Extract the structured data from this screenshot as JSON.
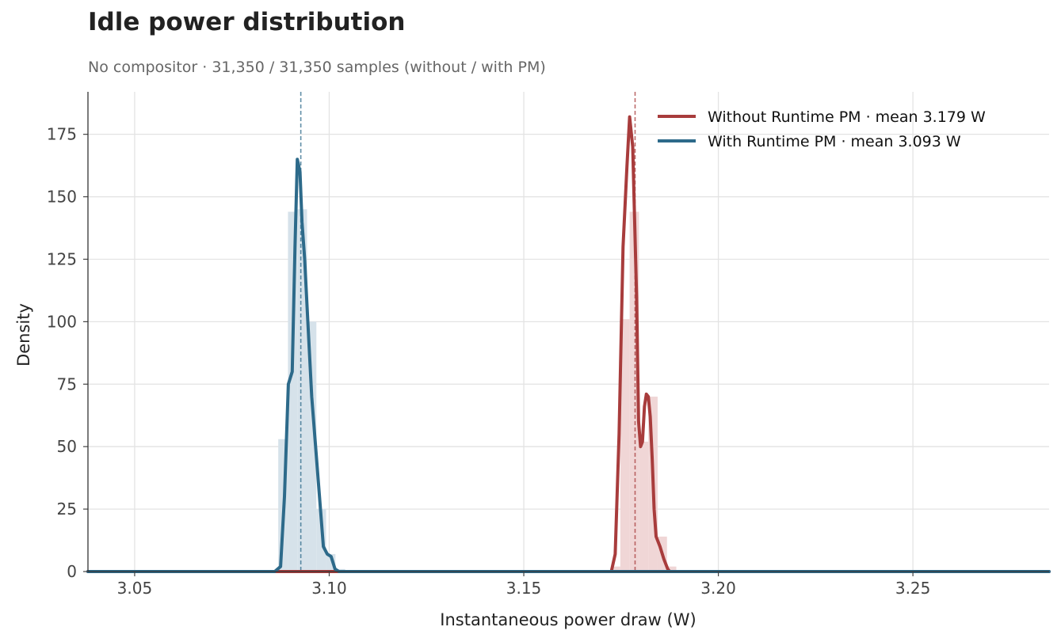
{
  "header": {
    "title": "Idle power distribution",
    "subtitle": "No compositor · 31,350 / 31,350 samples (without / with PM)"
  },
  "chart_data": {
    "type": "line",
    "title": "Idle power distribution",
    "subtitle": "No compositor · 31,350 / 31,350 samples (without / with PM)",
    "xlabel": "Instantaneous power draw (W)",
    "ylabel": "Density",
    "xlim": [
      3.038,
      3.285
    ],
    "ylim": [
      0,
      192
    ],
    "xticks": [
      3.05,
      3.1,
      3.15,
      3.2,
      3.25
    ],
    "xtick_labels": [
      "3.05",
      "3.10",
      "3.15",
      "3.20",
      "3.25"
    ],
    "yticks": [
      0,
      25,
      50,
      75,
      100,
      125,
      150,
      175
    ],
    "ytick_labels": [
      "0",
      "25",
      "50",
      "75",
      "100",
      "125",
      "150",
      "175"
    ],
    "grid": true,
    "legend_position": "top-right",
    "series": [
      {
        "name": "Without Runtime PM · mean 3.179 W",
        "color": "#a83c3c",
        "hist_color": "#f0d6d6",
        "mean": 3.1786,
        "kde_x": [
          3.038,
          3.168,
          3.1725,
          3.1735,
          3.1745,
          3.1755,
          3.1765,
          3.1772,
          3.178,
          3.179,
          3.1795,
          3.18,
          3.1805,
          3.181,
          3.1815,
          3.182,
          3.1825,
          3.183,
          3.1835,
          3.184,
          3.185,
          3.186,
          3.187,
          3.1875,
          3.195,
          3.285
        ],
        "kde_y": [
          0,
          0,
          0,
          7,
          55,
          130,
          162,
          182,
          170,
          110,
          60,
          50,
          52,
          66,
          71,
          70,
          62,
          45,
          25,
          14,
          10,
          5,
          1,
          0,
          0,
          0
        ],
        "hist_bins": [
          {
            "x0": 3.1724,
            "x1": 3.1748,
            "y": 2
          },
          {
            "x0": 3.1748,
            "x1": 3.1772,
            "y": 101
          },
          {
            "x0": 3.1772,
            "x1": 3.1796,
            "y": 144
          },
          {
            "x0": 3.1796,
            "x1": 3.182,
            "y": 52
          },
          {
            "x0": 3.182,
            "x1": 3.1844,
            "y": 70
          },
          {
            "x0": 3.1844,
            "x1": 3.1868,
            "y": 14
          },
          {
            "x0": 3.1868,
            "x1": 3.1892,
            "y": 2
          }
        ]
      },
      {
        "name": "With Runtime PM · mean 3.093 W",
        "color": "#2d6a8a",
        "hist_color": "#d6e2ea",
        "mean": 3.0927,
        "kde_x": [
          3.038,
          3.086,
          3.0875,
          3.0885,
          3.0895,
          3.0905,
          3.0912,
          3.0918,
          3.0925,
          3.093,
          3.0937,
          3.0945,
          3.0955,
          3.0965,
          3.0975,
          3.0985,
          3.0995,
          3.1005,
          3.1015,
          3.1025,
          3.106,
          3.285
        ],
        "kde_y": [
          0,
          0,
          2,
          30,
          75,
          80,
          130,
          165,
          160,
          140,
          125,
          100,
          70,
          50,
          30,
          10,
          7,
          6,
          1,
          0,
          0,
          0
        ],
        "hist_bins": [
          {
            "x0": 3.0869,
            "x1": 3.0894,
            "y": 53
          },
          {
            "x0": 3.0894,
            "x1": 3.0918,
            "y": 144
          },
          {
            "x0": 3.0918,
            "x1": 3.0943,
            "y": 145
          },
          {
            "x0": 3.0943,
            "x1": 3.0967,
            "y": 100
          },
          {
            "x0": 3.0967,
            "x1": 3.0992,
            "y": 25
          },
          {
            "x0": 3.0992,
            "x1": 3.1016,
            "y": 7
          },
          {
            "x0": 3.1016,
            "x1": 3.1041,
            "y": 1
          }
        ]
      }
    ]
  }
}
